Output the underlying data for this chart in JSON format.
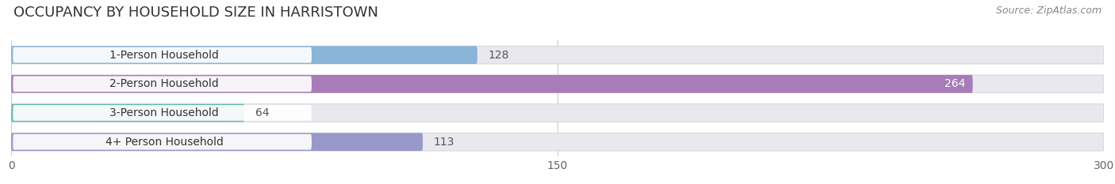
{
  "title": "OCCUPANCY BY HOUSEHOLD SIZE IN HARRISTOWN",
  "source": "Source: ZipAtlas.com",
  "categories": [
    "1-Person Household",
    "2-Person Household",
    "3-Person Household",
    "4+ Person Household"
  ],
  "values": [
    128,
    264,
    64,
    113
  ],
  "bar_colors": [
    "#8ab4d8",
    "#a87cb8",
    "#6abcb4",
    "#9898cc"
  ],
  "xlim": [
    0,
    300
  ],
  "xticks": [
    0,
    150,
    300
  ],
  "background_color": "#ffffff",
  "bar_background_color": "#e8e8ee",
  "title_fontsize": 13,
  "source_fontsize": 9,
  "label_fontsize": 10,
  "value_fontsize": 10,
  "tick_fontsize": 10
}
